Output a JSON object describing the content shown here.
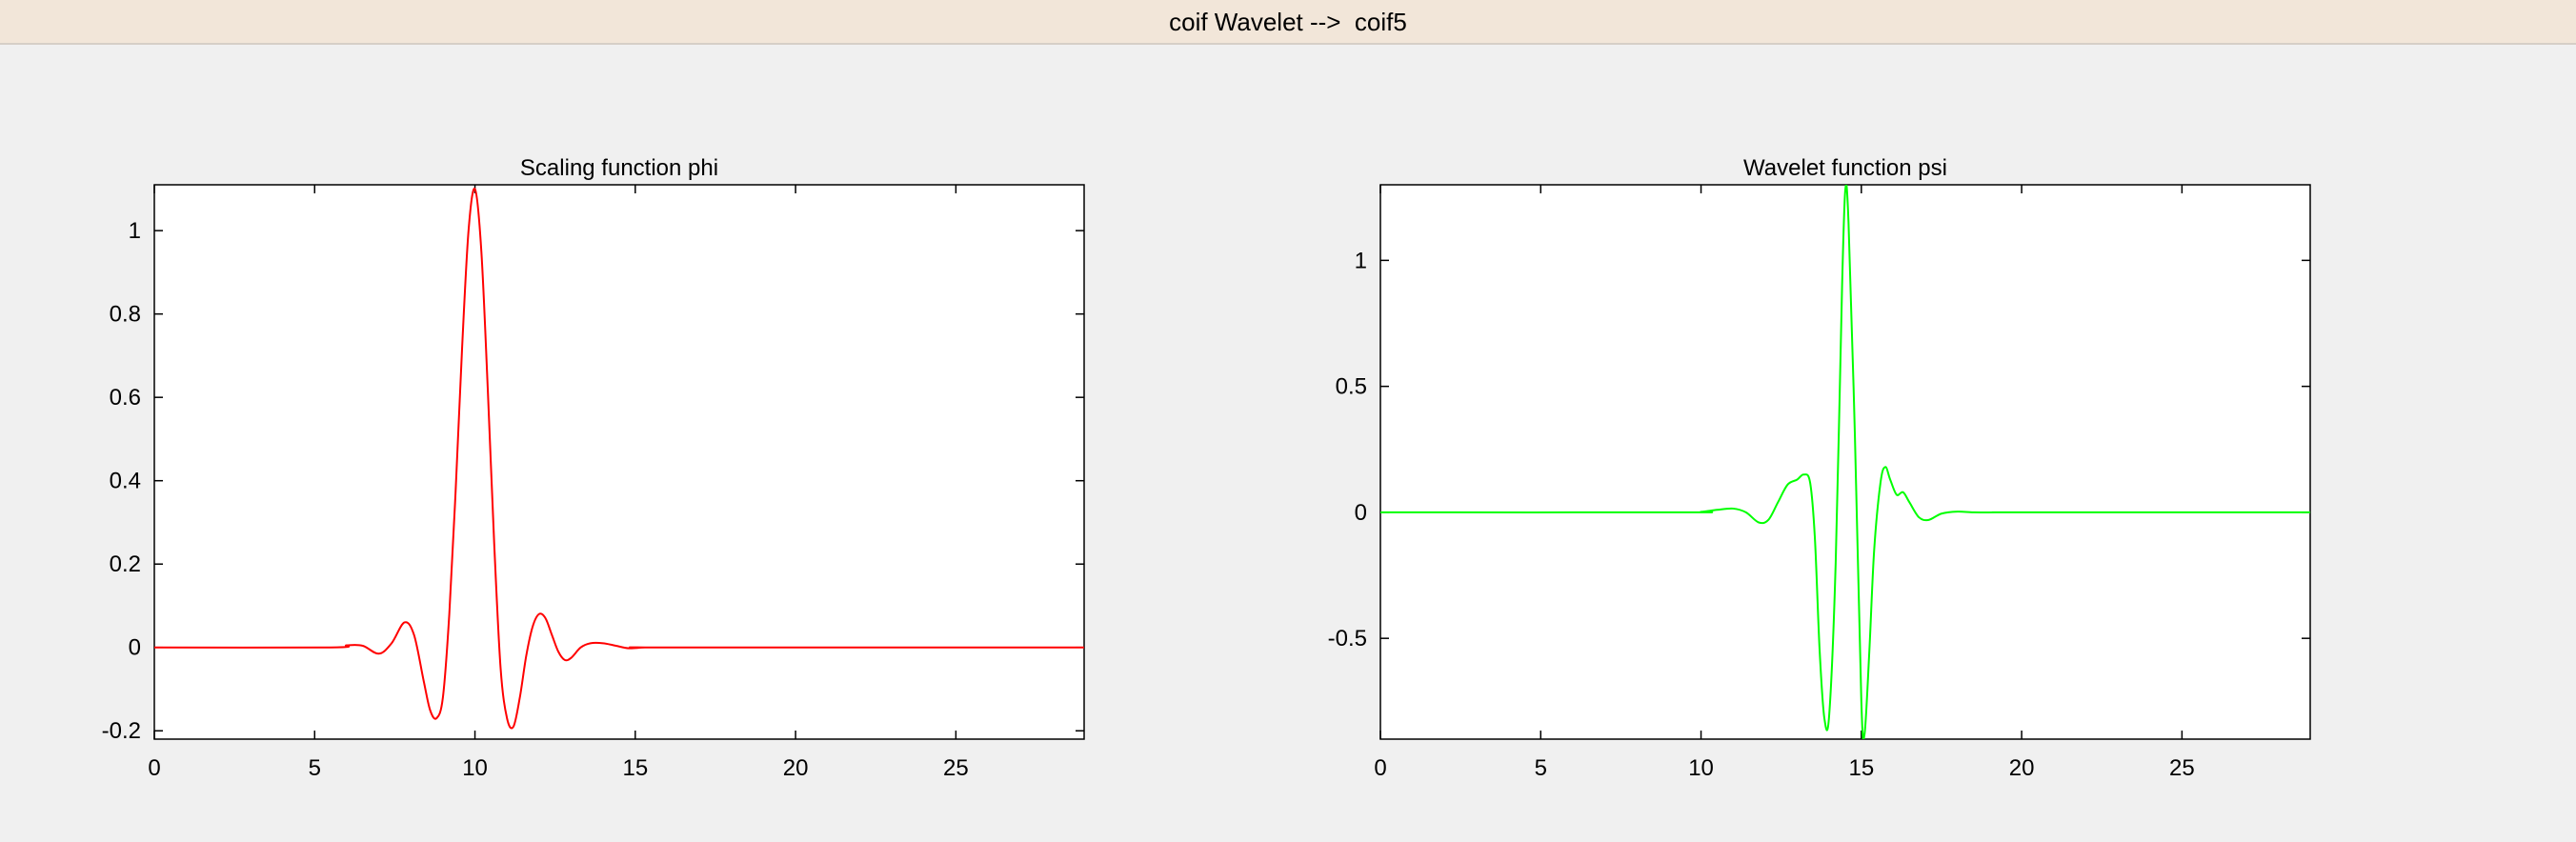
{
  "window": {
    "title": "coif Wavelet -->  coif5"
  },
  "chart_data": [
    {
      "type": "line",
      "title": "Scaling function phi",
      "xlabel": "",
      "ylabel": "",
      "xlim": [
        0,
        29
      ],
      "ylim": [
        -0.22,
        1.11
      ],
      "xticks": [
        0,
        5,
        10,
        15,
        20,
        25
      ],
      "yticks": [
        -0.2,
        0,
        0.2,
        0.4,
        0.6,
        0.8,
        1
      ],
      "grid": false,
      "color": "#ff0000",
      "x": [
        0,
        5.5,
        6.0,
        6.5,
        7.0,
        7.4,
        7.8,
        8.1,
        8.4,
        8.6,
        8.8,
        9.0,
        9.2,
        9.4,
        9.6,
        9.8,
        10.0,
        10.2,
        10.4,
        10.6,
        10.8,
        11.0,
        11.2,
        11.4,
        11.6,
        11.8,
        12.0,
        12.2,
        12.4,
        12.6,
        12.8,
        13.0,
        13.3,
        13.6,
        14.0,
        14.4,
        14.8,
        15.3,
        16.0,
        29
      ],
      "y": [
        0,
        0,
        0.005,
        0.004,
        -0.015,
        0.01,
        0.06,
        0.03,
        -0.08,
        -0.15,
        -0.17,
        -0.12,
        0.08,
        0.38,
        0.72,
        1.0,
        1.1,
        0.95,
        0.62,
        0.25,
        -0.05,
        -0.17,
        -0.19,
        -0.12,
        -0.02,
        0.05,
        0.08,
        0.07,
        0.03,
        -0.01,
        -0.03,
        -0.025,
        0.0,
        0.01,
        0.01,
        0.004,
        -0.002,
        0,
        0,
        0
      ]
    },
    {
      "type": "line",
      "title": "Wavelet function psi",
      "xlabel": "",
      "ylabel": "",
      "xlim": [
        0,
        29
      ],
      "ylim": [
        -0.9,
        1.3
      ],
      "xticks": [
        0,
        5,
        10,
        15,
        20,
        25
      ],
      "yticks": [
        -0.5,
        0,
        0.5,
        1
      ],
      "grid": false,
      "color": "#00ff00",
      "x": [
        0,
        9.5,
        10.0,
        10.5,
        11.0,
        11.4,
        11.8,
        12.1,
        12.4,
        12.7,
        13.0,
        13.2,
        13.4,
        13.55,
        13.7,
        13.85,
        14.0,
        14.2,
        14.4,
        14.5,
        14.6,
        14.8,
        15.0,
        15.1,
        15.25,
        15.4,
        15.6,
        15.75,
        15.9,
        16.1,
        16.3,
        16.5,
        16.8,
        17.1,
        17.5,
        18.0,
        18.5,
        19.2,
        20.0,
        29
      ],
      "y": [
        0,
        0,
        0.002,
        0.01,
        0.015,
        0.0,
        -0.04,
        -0.03,
        0.04,
        0.11,
        0.13,
        0.15,
        0.12,
        -0.1,
        -0.55,
        -0.82,
        -0.8,
        -0.2,
        0.9,
        1.28,
        1.15,
        0.3,
        -0.75,
        -0.88,
        -0.55,
        -0.15,
        0.12,
        0.18,
        0.13,
        0.07,
        0.08,
        0.04,
        -0.02,
        -0.03,
        -0.005,
        0.003,
        0.0,
        0,
        0,
        0
      ]
    }
  ]
}
